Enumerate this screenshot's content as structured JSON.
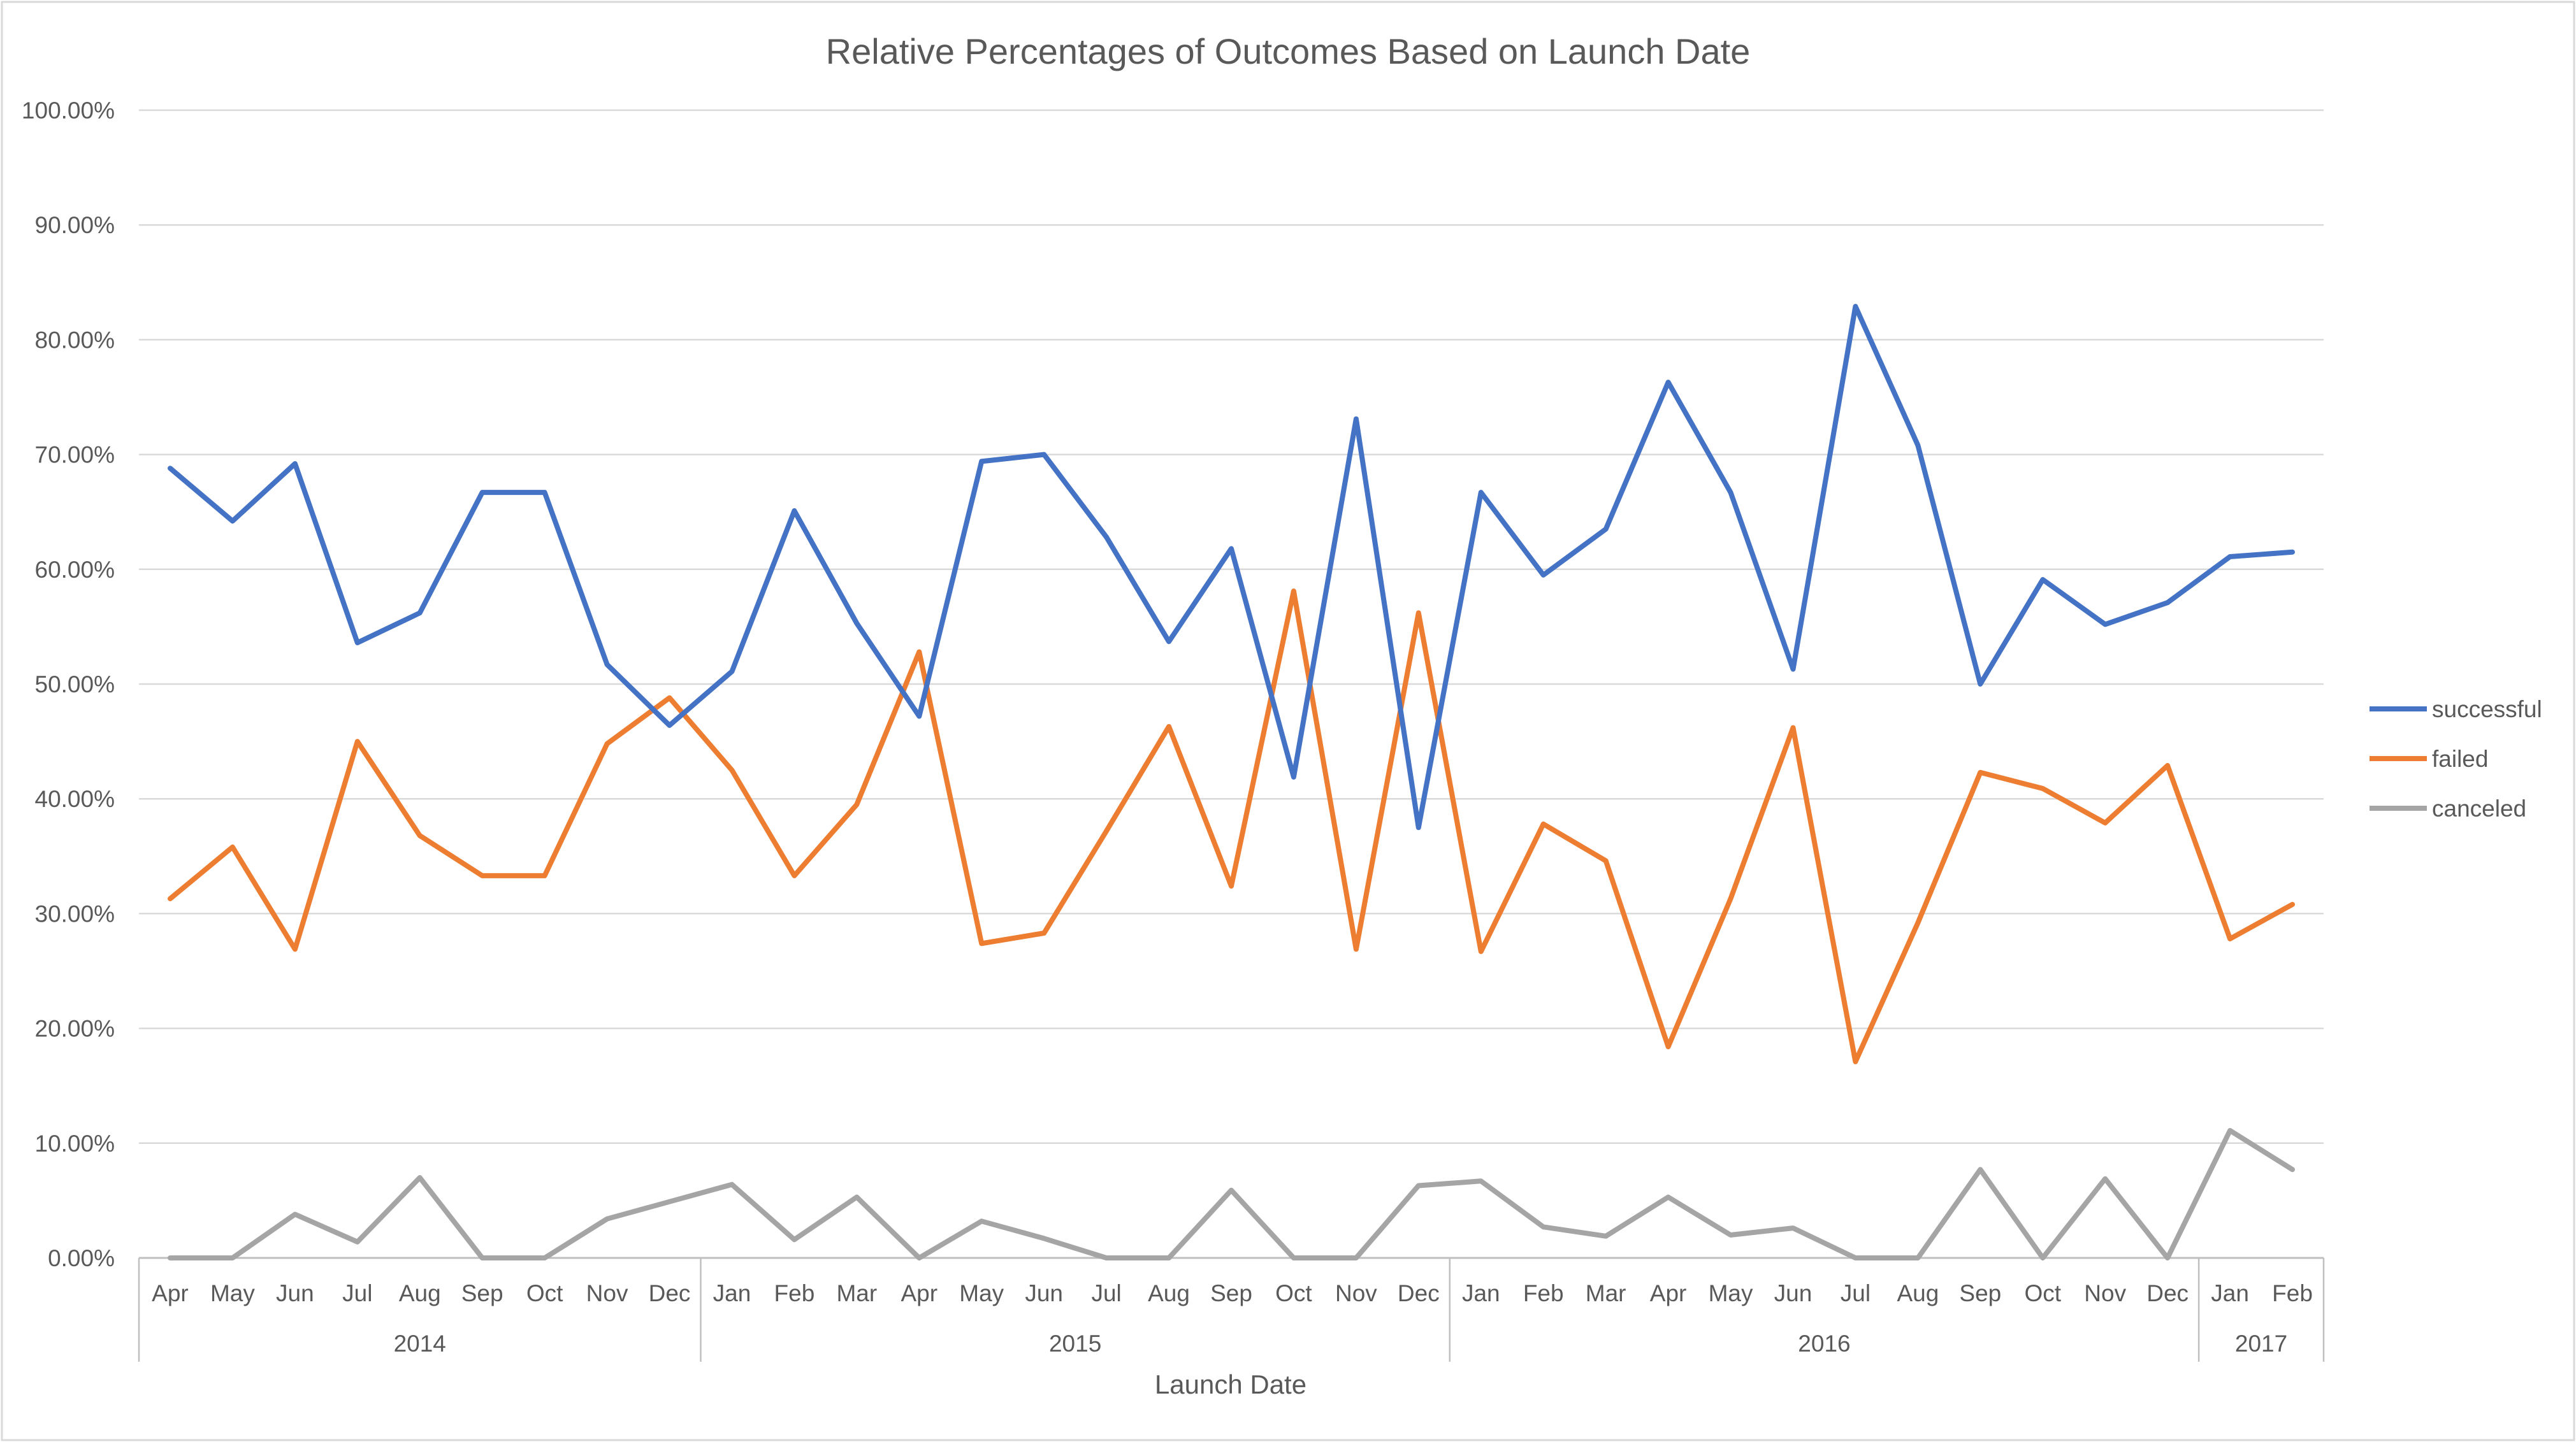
{
  "chart_data": {
    "type": "line",
    "title": "Relative Percentages of Outcomes Based on Launch Date",
    "xlabel": "Launch Date",
    "ylabel": "",
    "ylim": [
      0,
      100
    ],
    "y_ticks": [
      "0.00%",
      "10.00%",
      "20.00%",
      "30.00%",
      "40.00%",
      "50.00%",
      "60.00%",
      "70.00%",
      "80.00%",
      "90.00%",
      "100.00%"
    ],
    "grid": true,
    "legend_position": "right",
    "categories": [
      "Apr",
      "May",
      "Jun",
      "Jul",
      "Aug",
      "Sep",
      "Oct",
      "Nov",
      "Dec",
      "Jan",
      "Feb",
      "Mar",
      "Apr",
      "May",
      "Jun",
      "Jul",
      "Aug",
      "Sep",
      "Oct",
      "Nov",
      "Dec",
      "Jan",
      "Feb",
      "Mar",
      "Apr",
      "May",
      "Jun",
      "Jul",
      "Aug",
      "Sep",
      "Oct",
      "Nov",
      "Dec",
      "Jan",
      "Feb"
    ],
    "year_groups": [
      {
        "label": "2014",
        "count": 9
      },
      {
        "label": "2015",
        "count": 12
      },
      {
        "label": "2016",
        "count": 12
      },
      {
        "label": "2017",
        "count": 2
      }
    ],
    "series": [
      {
        "name": "successful",
        "color": "#4472C4",
        "values": [
          68.8,
          64.2,
          69.2,
          53.6,
          56.2,
          66.7,
          66.7,
          51.7,
          46.4,
          51.1,
          65.1,
          55.3,
          47.2,
          69.4,
          70.0,
          62.8,
          53.7,
          61.8,
          41.9,
          73.1,
          37.5,
          66.7,
          59.5,
          63.5,
          76.3,
          66.7,
          51.3,
          82.9,
          70.8,
          50.0,
          59.1,
          55.2,
          57.1,
          61.1,
          61.5
        ]
      },
      {
        "name": "failed",
        "color": "#ED7D31",
        "values": [
          31.3,
          35.8,
          26.9,
          45.0,
          36.8,
          33.3,
          33.3,
          44.8,
          48.8,
          42.5,
          33.3,
          39.5,
          52.8,
          27.4,
          28.3,
          37.2,
          46.3,
          32.4,
          58.1,
          26.9,
          56.2,
          26.7,
          37.8,
          34.6,
          18.4,
          31.3,
          46.2,
          17.1,
          29.2,
          42.3,
          40.9,
          37.9,
          42.9,
          27.8,
          30.8
        ]
      },
      {
        "name": "canceled",
        "color": "#A5A5A5",
        "values": [
          0.0,
          0.0,
          3.8,
          1.4,
          7.0,
          0.0,
          0.0,
          3.4,
          4.9,
          6.4,
          1.6,
          5.3,
          0.0,
          3.2,
          1.7,
          0.0,
          0.0,
          5.9,
          0.0,
          0.0,
          6.3,
          6.7,
          2.7,
          1.9,
          5.3,
          2.0,
          2.6,
          0.0,
          0.0,
          7.7,
          0.0,
          6.9,
          0.0,
          11.1,
          7.7
        ]
      }
    ]
  }
}
